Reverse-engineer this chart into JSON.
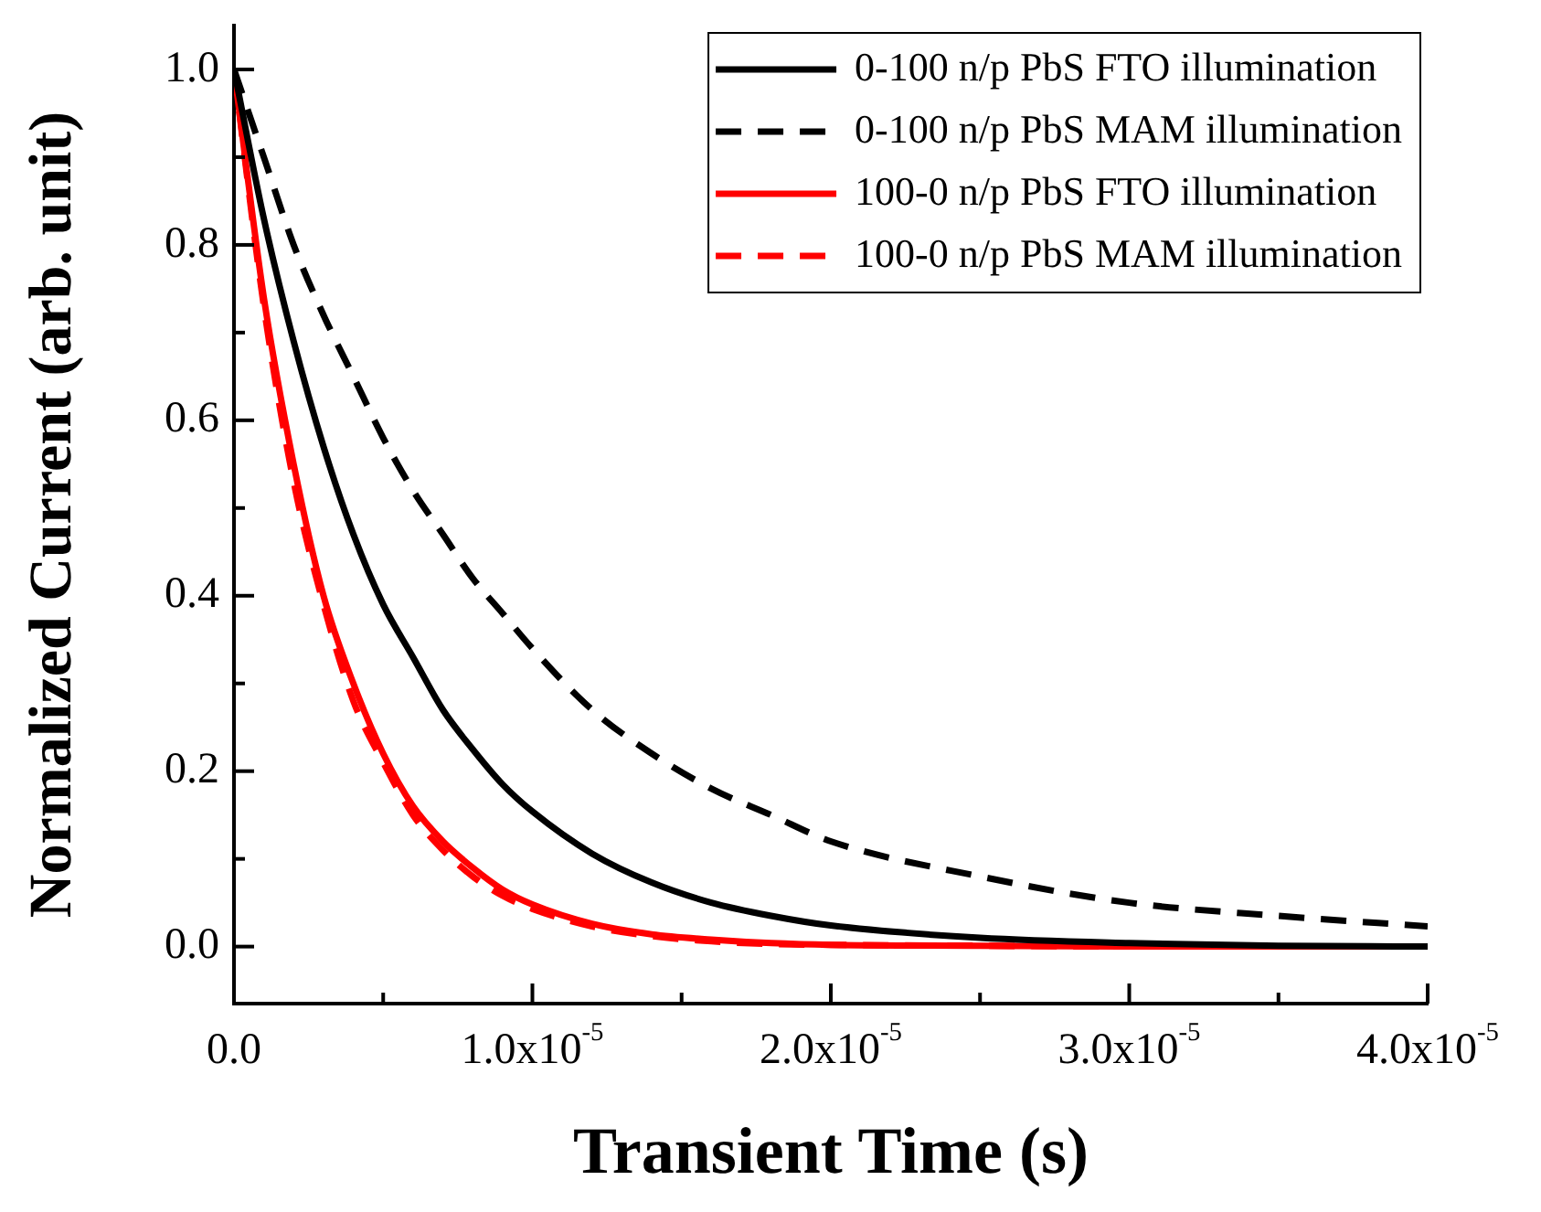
{
  "chart_data": {
    "type": "line",
    "xlabel": "Transient Time (s)",
    "ylabel": "Normalized Current (arb. unit)",
    "x": [
      0,
      1e-06,
      2e-06,
      3e-06,
      4e-06,
      5e-06,
      6e-06,
      7e-06,
      8e-06,
      9e-06,
      1e-05,
      1.2e-05,
      1.4e-05,
      1.6e-05,
      1.8e-05,
      2e-05,
      2.5e-05,
      3e-05,
      3.5e-05,
      4e-05
    ],
    "series": [
      {
        "name": "0-100 n/p PbS FTO illumination",
        "color": "#000000",
        "line_style": "solid",
        "values": [
          1,
          0.83,
          0.69,
          0.57,
          0.47,
          0.39,
          0.33,
          0.27,
          0.225,
          0.185,
          0.154,
          0.106,
          0.073,
          0.05,
          0.035,
          0.024,
          0.01,
          0.004,
          0.001,
          0
        ]
      },
      {
        "name": "0-100 n/p PbS MAM illumination",
        "color": "#000000",
        "line_style": "dashed",
        "values": [
          1,
          0.9,
          0.8,
          0.72,
          0.65,
          0.58,
          0.52,
          0.47,
          0.42,
          0.38,
          0.34,
          0.27,
          0.22,
          0.18,
          0.15,
          0.12,
          0.08,
          0.05,
          0.035,
          0.023
        ]
      },
      {
        "name": "100-0 n/p PbS FTO illumination",
        "color": "#ff0000",
        "line_style": "solid",
        "values": [
          1,
          0.74,
          0.55,
          0.4,
          0.3,
          0.22,
          0.16,
          0.12,
          0.09,
          0.065,
          0.048,
          0.026,
          0.014,
          0.008,
          0.004,
          0.002,
          0.001,
          0,
          0,
          0
        ]
      },
      {
        "name": "100-0 n/p PbS MAM illumination",
        "color": "#ff0000",
        "line_style": "dashed",
        "values": [
          1,
          0.73,
          0.53,
          0.39,
          0.28,
          0.21,
          0.15,
          0.11,
          0.08,
          0.058,
          0.043,
          0.023,
          0.012,
          0.006,
          0.003,
          0.002,
          0.001,
          0,
          0,
          0
        ]
      }
    ],
    "xlim": [
      0,
      4e-05
    ],
    "xticks": [
      {
        "value": 0,
        "label": "0.0"
      },
      {
        "value": 5e-06,
        "label": null
      },
      {
        "value": 1e-05,
        "label": "1.0x10$^{-5}$"
      },
      {
        "value": 1.5e-05,
        "label": null
      },
      {
        "value": 2e-05,
        "label": "2.0x10$^{-5}$"
      },
      {
        "value": 2.5e-05,
        "label": null
      },
      {
        "value": 3e-05,
        "label": "3.0x10$^{-5}$"
      },
      {
        "value": 3.5e-05,
        "label": null
      },
      {
        "value": 4e-05,
        "label": "4.0x10$^{-5}$"
      }
    ],
    "ylim": [
      -0.065,
      1.05
    ],
    "yticks": [
      {
        "value": 0,
        "label": "0.0"
      },
      {
        "value": 0.1,
        "label": null
      },
      {
        "value": 0.2,
        "label": "0.2"
      },
      {
        "value": 0.3,
        "label": null
      },
      {
        "value": 0.4,
        "label": "0.4"
      },
      {
        "value": 0.5,
        "label": null
      },
      {
        "value": 0.6,
        "label": "0.6"
      },
      {
        "value": 0.7,
        "label": null
      },
      {
        "value": 0.8,
        "label": "0.8"
      },
      {
        "value": 0.9,
        "label": null
      },
      {
        "value": 1,
        "label": "1.0"
      }
    ],
    "grid": false,
    "legend": "top right",
    "marker": "none"
  }
}
